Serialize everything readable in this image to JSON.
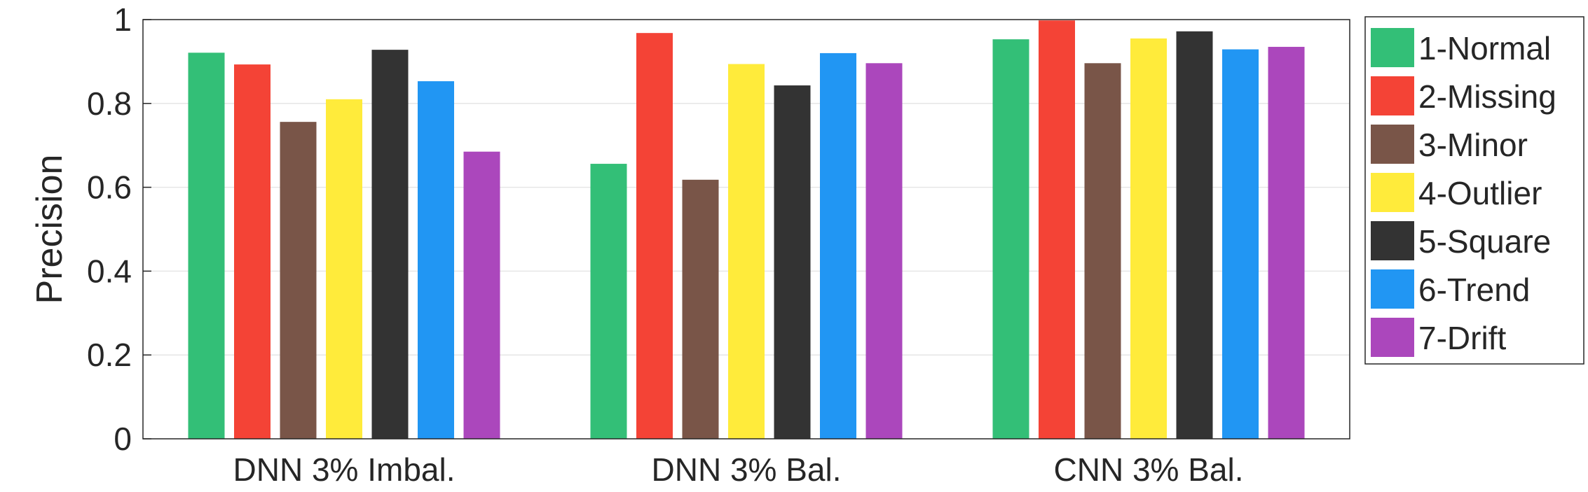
{
  "chart_data": {
    "type": "bar",
    "ylabel": "Precision",
    "xlabel": "",
    "ylim": [
      0,
      1
    ],
    "yticks": [
      0,
      0.2,
      0.4,
      0.6,
      0.8,
      1
    ],
    "ytick_labels": [
      "0",
      "0.2",
      "0.4",
      "0.6",
      "0.8",
      "1"
    ],
    "grid": true,
    "legend_position": "right",
    "categories": [
      "DNN 3% Imbal.",
      "DNN 3% Bal.",
      "CNN 3% Bal."
    ],
    "series": [
      {
        "name": "1-Normal",
        "color": "#33bf77",
        "values": [
          0.921,
          0.656,
          0.953
        ]
      },
      {
        "name": "2-Missing",
        "color": "#f44336",
        "values": [
          0.893,
          0.968,
          0.998
        ]
      },
      {
        "name": "3-Minor",
        "color": "#795548",
        "values": [
          0.756,
          0.618,
          0.896
        ]
      },
      {
        "name": "4-Outlier",
        "color": "#ffeb3b",
        "values": [
          0.81,
          0.894,
          0.955
        ]
      },
      {
        "name": "5-Square",
        "color": "#333333",
        "values": [
          0.928,
          0.843,
          0.972
        ]
      },
      {
        "name": "6-Trend",
        "color": "#2196f3",
        "values": [
          0.853,
          0.92,
          0.929
        ]
      },
      {
        "name": "7-Drift",
        "color": "#ab47bc",
        "values": [
          0.685,
          0.896,
          0.935
        ]
      }
    ]
  }
}
